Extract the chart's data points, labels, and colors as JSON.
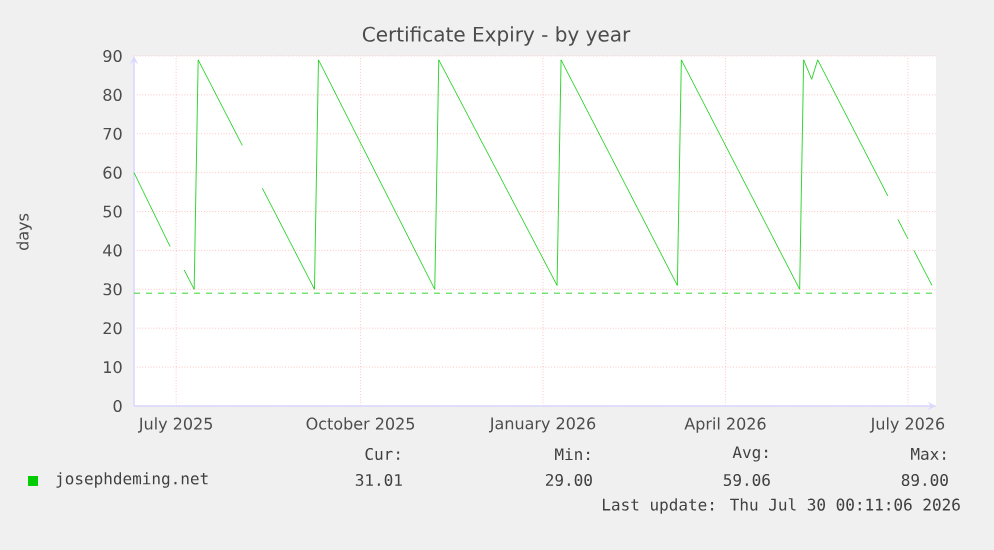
{
  "chart_data": {
    "type": "line",
    "title": "Certificate Expiry - by year",
    "ylabel": "days",
    "x": [
      "2025-06-25",
      "2025-07-13",
      "2025-07-16",
      "2025-07-20",
      "2025-07-25",
      "2025-07-27",
      "2025-08-18",
      "2025-08-23",
      "2025-08-28",
      "2025-09-23",
      "2025-09-25",
      "2025-11-22",
      "2025-11-24",
      "2026-01-22",
      "2026-01-24",
      "2026-03-23",
      "2026-03-25",
      "2026-05-23",
      "2026-05-25",
      "2026-05-29",
      "2026-06-01",
      "2026-07-06",
      "2026-07-08",
      "2026-07-11",
      "2026-07-16",
      "2026-07-17",
      "2026-07-19",
      "2026-07-28"
    ],
    "series": [
      {
        "name": "josephdeming.net",
        "color": "#00cc00",
        "values": [
          60,
          41,
          null,
          35,
          30,
          89,
          67,
          null,
          56,
          30,
          89,
          30,
          89,
          31,
          89,
          31,
          89,
          30,
          89,
          84,
          89,
          54,
          null,
          48,
          43,
          null,
          40,
          31
        ]
      }
    ],
    "xlim": [
      "2025-06-25",
      "2026-07-30"
    ],
    "xticks": [
      {
        "value": "2025-07-16",
        "label": "July 2025"
      },
      {
        "value": "2025-10-16",
        "label": "October 2025"
      },
      {
        "value": "2026-01-15",
        "label": "January 2026"
      },
      {
        "value": "2026-04-16",
        "label": "April 2026"
      },
      {
        "value": "2026-07-16",
        "label": "July 2026"
      }
    ],
    "ylim": [
      0,
      90
    ],
    "yticks": [
      0,
      10,
      20,
      30,
      40,
      50,
      60,
      70,
      80,
      90
    ],
    "ref_lines": [
      {
        "axis": "y",
        "value": 29,
        "color": "#00cc00",
        "line_style": "dashed"
      }
    ],
    "grid": true,
    "legend": "bottom",
    "marker": "none",
    "line_style": "solid",
    "annotations": [
      "Cur:",
      "Min:",
      "Avg:",
      "Max:",
      "31.01",
      "29.00",
      "59.06",
      "89.00",
      "Last update: Thu Jul 30 00:11:06 2026"
    ]
  }
}
